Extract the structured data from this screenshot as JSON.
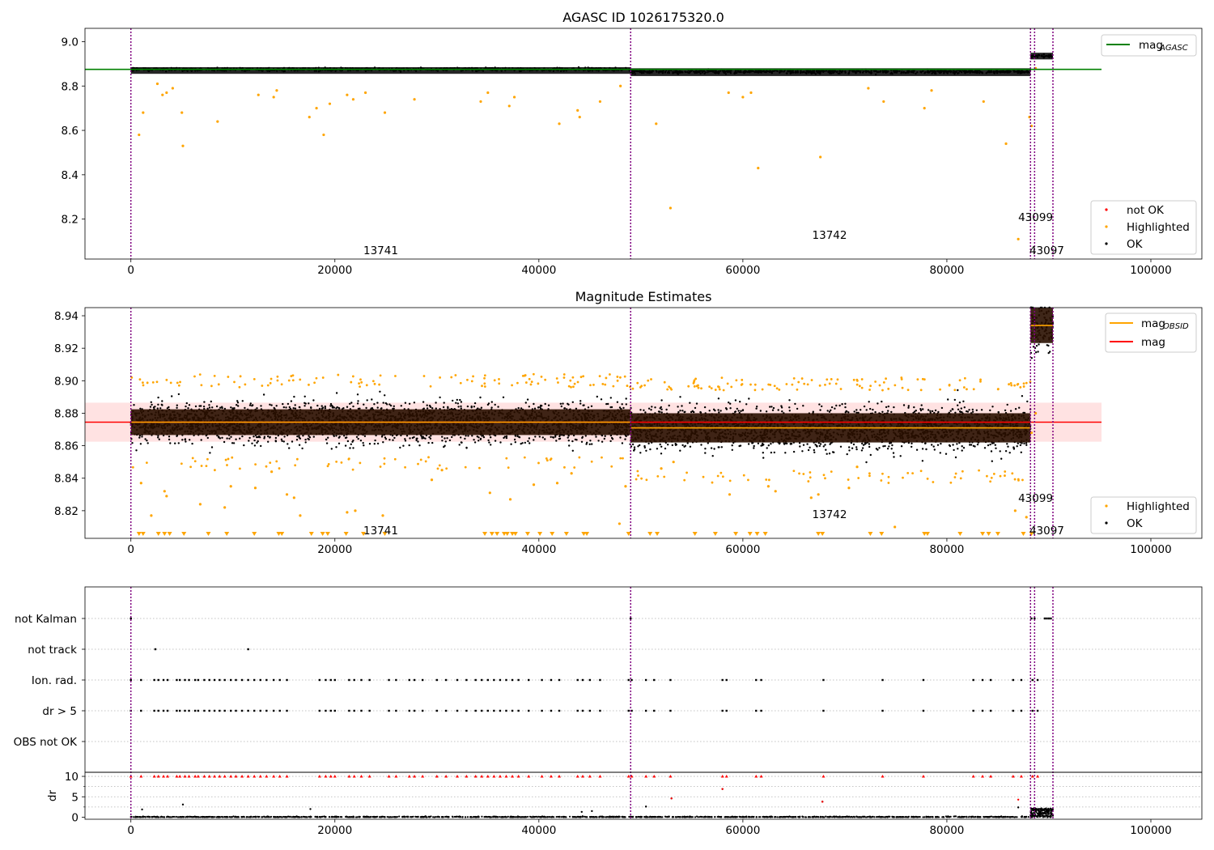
{
  "chart_data": [
    {
      "type": "scatter",
      "title": "AGASC ID 1026175320.0",
      "xlabel": "",
      "ylabel": "",
      "xlim": [
        -4500,
        105000
      ],
      "ylim": [
        8.02,
        9.06
      ],
      "xticks": [
        0,
        20000,
        40000,
        60000,
        80000,
        100000
      ],
      "xtick_labels": [
        "0",
        "20000",
        "40000",
        "60000",
        "80000",
        "100000"
      ],
      "yticks": [
        8.2,
        8.4,
        8.6,
        8.8,
        9.0
      ],
      "ytick_labels": [
        "8.2",
        "8.4",
        "8.6",
        "8.8",
        "9.0"
      ],
      "obsid_boundaries": [
        0,
        49000,
        88200,
        88600,
        90400
      ],
      "obsid_labels": [
        {
          "text": "13741",
          "x": 24500,
          "y": 8.06
        },
        {
          "text": "13742",
          "x": 68500,
          "y": 8.13
        },
        {
          "text": "43099",
          "x": 88700,
          "y": 8.21
        },
        {
          "text": "43097",
          "x": 89800,
          "y": 8.06
        }
      ],
      "segments": [
        {
          "x0": 0,
          "x1": 49000,
          "ok_range": [
            8.855,
            8.885
          ],
          "center": 8.875
        },
        {
          "x0": 49000,
          "x1": 88200,
          "ok_range": [
            8.845,
            8.88
          ],
          "center": 8.865
        },
        {
          "x0": 88200,
          "x1": 90400,
          "ok_range": [
            8.92,
            8.95
          ],
          "center": 8.935
        }
      ],
      "mag_agasc": 8.875,
      "mag_line_color": "#008000",
      "series": [
        {
          "name": "not OK",
          "color": "#ff0000",
          "points": []
        },
        {
          "name": "Highlighted",
          "color": "#ffa500",
          "points": [
            [
              800,
              8.58
            ],
            [
              1200,
              8.68
            ],
            [
              2600,
              8.81
            ],
            [
              3100,
              8.76
            ],
            [
              3500,
              8.77
            ],
            [
              4100,
              8.79
            ],
            [
              5000,
              8.68
            ],
            [
              5100,
              8.53
            ],
            [
              8500,
              8.64
            ],
            [
              12500,
              8.76
            ],
            [
              14000,
              8.75
            ],
            [
              14300,
              8.78
            ],
            [
              17500,
              8.66
            ],
            [
              18200,
              8.7
            ],
            [
              18900,
              8.58
            ],
            [
              19500,
              8.72
            ],
            [
              21200,
              8.76
            ],
            [
              21800,
              8.74
            ],
            [
              23000,
              8.77
            ],
            [
              24900,
              8.68
            ],
            [
              27800,
              8.74
            ],
            [
              34300,
              8.73
            ],
            [
              35000,
              8.77
            ],
            [
              37100,
              8.71
            ],
            [
              37600,
              8.75
            ],
            [
              42000,
              8.63
            ],
            [
              43800,
              8.69
            ],
            [
              44000,
              8.66
            ],
            [
              46000,
              8.73
            ],
            [
              48000,
              8.8
            ],
            [
              51500,
              8.63
            ],
            [
              52900,
              8.25
            ],
            [
              58600,
              8.77
            ],
            [
              60000,
              8.75
            ],
            [
              60800,
              8.77
            ],
            [
              61500,
              8.43
            ],
            [
              67600,
              8.48
            ],
            [
              72300,
              8.79
            ],
            [
              73800,
              8.73
            ],
            [
              77800,
              8.7
            ],
            [
              78500,
              8.78
            ],
            [
              83600,
              8.73
            ],
            [
              85800,
              8.54
            ],
            [
              87000,
              8.11
            ],
            [
              88100,
              8.66
            ],
            [
              88300,
              8.62
            ],
            [
              88700,
              8.88
            ]
          ]
        },
        {
          "name": "OK",
          "color": "#000000",
          "points": []
        }
      ],
      "legend": [
        "mag_AGASC",
        "not OK",
        "Highlighted",
        "OK"
      ],
      "legend_mag_label": "mag",
      "legend_mag_sub": "AGASC",
      "legend_position": [
        "upper right",
        "lower right"
      ]
    },
    {
      "type": "scatter",
      "title": "Magnitude Estimates",
      "xlabel": "",
      "ylabel": "",
      "xlim": [
        -4500,
        105000
      ],
      "ylim": [
        8.803,
        8.945
      ],
      "xticks": [
        0,
        20000,
        40000,
        60000,
        80000,
        100000
      ],
      "xtick_labels": [
        "0",
        "20000",
        "40000",
        "60000",
        "80000",
        "100000"
      ],
      "yticks": [
        8.82,
        8.84,
        8.86,
        8.88,
        8.9,
        8.92,
        8.94
      ],
      "ytick_labels": [
        "8.82",
        "8.84",
        "8.86",
        "8.88",
        "8.90",
        "8.92",
        "8.94"
      ],
      "obsid_boundaries": [
        0,
        49000,
        88200,
        88600,
        90400
      ],
      "obsid_labels": [
        {
          "text": "13741",
          "x": 24500,
          "y": 8.808
        },
        {
          "text": "13742",
          "x": 68500,
          "y": 8.818
        },
        {
          "text": "43099",
          "x": 88700,
          "y": 8.828
        },
        {
          "text": "43097",
          "x": 89800,
          "y": 8.808
        }
      ],
      "mag": 8.8745,
      "mag_band": [
        8.8625,
        8.8865
      ],
      "mag_obsid": [
        {
          "x0": 0,
          "x1": 49000,
          "value": 8.8745
        },
        {
          "x0": 49000,
          "x1": 88200,
          "value": 8.871
        },
        {
          "x0": 88200,
          "x1": 90400,
          "value": 8.934
        }
      ],
      "segments": [
        {
          "x0": 0,
          "x1": 49000,
          "ok_range": [
            8.853,
            8.897
          ],
          "center": 8.8745
        },
        {
          "x0": 49000,
          "x1": 88200,
          "ok_range": [
            8.845,
            8.895
          ],
          "center": 8.871
        },
        {
          "x0": 88200,
          "x1": 90400,
          "ok_range": [
            8.885,
            8.945
          ],
          "center": 8.934
        }
      ],
      "clipped_highlight_x": [
        800,
        1200,
        2700,
        3300,
        3800,
        5200,
        7600,
        9400,
        12100,
        14500,
        14800,
        17700,
        18800,
        19300,
        21100,
        22800,
        24900,
        34700,
        35400,
        35900,
        36600,
        36900,
        37400,
        37700,
        38900,
        40100,
        41300,
        42700,
        44400,
        44700,
        48800,
        50900,
        51600,
        55300,
        57300,
        59300,
        60700,
        61400,
        62200,
        67400,
        67800,
        72500,
        73600,
        77800,
        78100,
        81300,
        83500,
        84100,
        85000,
        87500,
        88300
      ],
      "series": [
        {
          "name": "Highlighted",
          "color": "#ffa500",
          "points": [
            [
              1000,
              8.837
            ],
            [
              2000,
              8.817
            ],
            [
              3300,
              8.832
            ],
            [
              3500,
              8.829
            ],
            [
              6800,
              8.824
            ],
            [
              9200,
              8.822
            ],
            [
              9800,
              8.835
            ],
            [
              12200,
              8.834
            ],
            [
              13800,
              8.844
            ],
            [
              15300,
              8.83
            ],
            [
              16000,
              8.828
            ],
            [
              16600,
              8.817
            ],
            [
              21200,
              8.819
            ],
            [
              22000,
              8.82
            ],
            [
              24700,
              8.817
            ],
            [
              29500,
              8.839
            ],
            [
              30500,
              8.845
            ],
            [
              35200,
              8.831
            ],
            [
              37200,
              8.827
            ],
            [
              39500,
              8.836
            ],
            [
              41800,
              8.837
            ],
            [
              43200,
              8.843
            ],
            [
              47900,
              8.812
            ],
            [
              48500,
              8.835
            ],
            [
              52000,
              8.846
            ],
            [
              53200,
              8.85
            ],
            [
              58700,
              8.83
            ],
            [
              62500,
              8.835
            ],
            [
              63200,
              8.832
            ],
            [
              66700,
              8.828
            ],
            [
              67400,
              8.83
            ],
            [
              70400,
              8.834
            ],
            [
              71200,
              8.847
            ],
            [
              74900,
              8.81
            ],
            [
              86700,
              8.82
            ],
            [
              87800,
              8.816
            ],
            [
              88300,
              8.868
            ],
            [
              88700,
              8.88
            ]
          ]
        },
        {
          "name": "OK",
          "color": "#000000",
          "points": []
        }
      ],
      "legend": [
        "mag_OBSID",
        "mag",
        "Highlighted",
        "OK"
      ],
      "legend_mag_obsid_label": "mag",
      "legend_mag_obsid_sub": "OBSID",
      "legend_mag_label": "mag",
      "mag_color": "#ff0000",
      "mag_obsid_color": "#ffa500",
      "legend_position": [
        "upper right",
        "lower right"
      ]
    },
    {
      "type": "scatter",
      "title": "",
      "xlabel": "",
      "ylabel": "",
      "xlim": [
        -4500,
        105000
      ],
      "ylim": [
        -0.5,
        30
      ],
      "categories": [
        "not Kalman",
        "not track",
        "Ion. rad.",
        "dr > 5",
        "OBS not OK"
      ],
      "obsid_boundaries": [
        0,
        49000,
        88200,
        88600,
        90400
      ],
      "flags": {
        "not Kalman": [
          0,
          49000,
          88300,
          88600,
          89600,
          89800,
          90000,
          90200
        ],
        "not track": [
          2400,
          11500
        ],
        "Ion. rad.": [
          0,
          1000,
          2300,
          2700,
          3200,
          3600,
          4500,
          4800,
          5300,
          5700,
          6300,
          6600,
          7200,
          7700,
          8200,
          8700,
          9200,
          9800,
          10300,
          10900,
          11500,
          12100,
          12700,
          13300,
          14000,
          14600,
          15300,
          18500,
          19100,
          19600,
          20000,
          21400,
          21900,
          22600,
          23400,
          25300,
          26000,
          27300,
          27800,
          28600,
          30000,
          30900,
          32000,
          32900,
          33800,
          34400,
          35000,
          35600,
          36200,
          36800,
          37400,
          38000,
          39000,
          40300,
          41200,
          42000,
          43800,
          44300,
          45000,
          46000,
          48800,
          49100,
          50500,
          51300,
          52900,
          58000,
          58400,
          61300,
          61800,
          67900,
          73700,
          77700,
          82600,
          83500,
          84300,
          86500,
          87300,
          88400,
          88900
        ],
        "dr > 5": [
          0,
          1000,
          2300,
          2700,
          3200,
          3600,
          4500,
          4800,
          5300,
          5700,
          6300,
          6600,
          7200,
          7700,
          8200,
          8700,
          9200,
          9800,
          10300,
          10900,
          11500,
          12100,
          12700,
          13300,
          14000,
          14600,
          15300,
          18500,
          19100,
          19600,
          20000,
          21400,
          21900,
          22600,
          23400,
          25300,
          26000,
          27300,
          27800,
          28600,
          30000,
          30900,
          32000,
          32900,
          33800,
          34400,
          35000,
          35600,
          36200,
          36800,
          37400,
          38000,
          39000,
          40300,
          41200,
          42000,
          43800,
          44300,
          45000,
          46000,
          48800,
          49100,
          50500,
          51300,
          52900,
          58000,
          58400,
          61300,
          61800,
          67900,
          73700,
          77700,
          82600,
          83500,
          84300,
          86500,
          87300,
          88400,
          88900
        ],
        "OBS not OK": []
      },
      "dr_ylabel": "dr",
      "dr_ylim": [
        -0.5,
        11
      ],
      "dr_yticks": [
        0,
        5,
        10
      ],
      "dr_ytick_labels": [
        "0",
        "5",
        "10"
      ],
      "dr_minor_yticks": [
        2.5,
        7.5
      ],
      "dr_clipped_color": "#ff0000",
      "dr_outliers": [
        [
          1100,
          1.9
        ],
        [
          5100,
          3.1
        ],
        [
          17600,
          2.0
        ],
        [
          44200,
          1.3
        ],
        [
          45200,
          1.5
        ],
        [
          50500,
          2.6
        ],
        [
          53000,
          4.6
        ],
        [
          58000,
          6.9
        ],
        [
          67800,
          3.8
        ],
        [
          87000,
          2.4
        ],
        [
          88600,
          1.9
        ],
        [
          89000,
          1.6
        ],
        [
          89600,
          1.2
        ]
      ],
      "xticks": [
        0,
        20000,
        40000,
        60000,
        80000,
        100000
      ],
      "xtick_labels": [
        "0",
        "20000",
        "40000",
        "60000",
        "80000",
        "100000"
      ]
    }
  ]
}
